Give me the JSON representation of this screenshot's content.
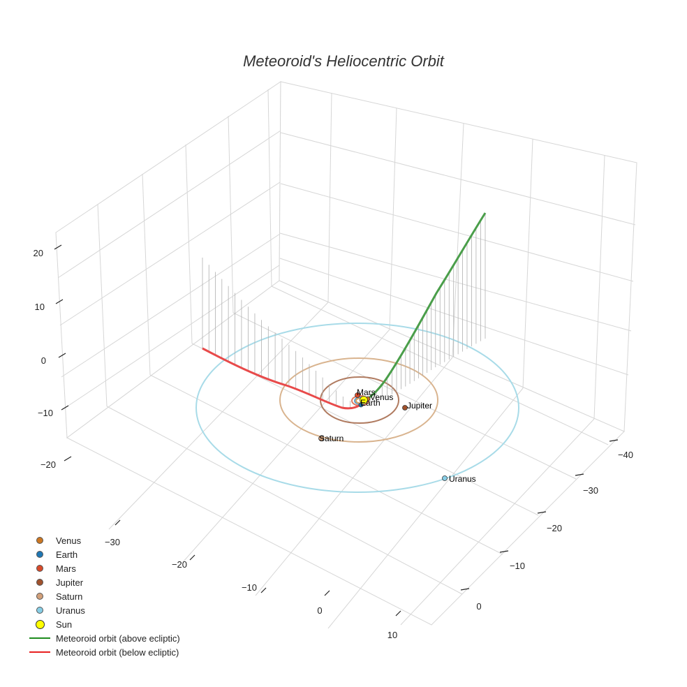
{
  "chart_data": {
    "type": "scatter",
    "title": "Meteoroid's Heliocentric Orbit",
    "xlabel": "",
    "ylabel": "",
    "zlabel": "",
    "xlim": [
      -35,
      15
    ],
    "ylim": [
      -45,
      5
    ],
    "zlim": [
      -28,
      28
    ],
    "x_ticks": [
      "−30",
      "−20",
      "−10",
      "0",
      "10"
    ],
    "y_ticks": [
      "−40",
      "−30",
      "−20",
      "−10",
      "0"
    ],
    "z_ticks": [
      "20",
      "10",
      "0",
      "−10",
      "−20"
    ],
    "grid": true,
    "legend_position": "bottom-left",
    "planets": [
      {
        "name": "Venus",
        "color": "#cc7722",
        "orbit_radius": 0.72
      },
      {
        "name": "Earth",
        "color": "#1f77b4",
        "orbit_radius": 1.0
      },
      {
        "name": "Mars",
        "color": "#d84a2a",
        "orbit_radius": 1.52
      },
      {
        "name": "Jupiter",
        "color": "#a0522d",
        "orbit_radius": 5.2
      },
      {
        "name": "Saturn",
        "color": "#d2a07a",
        "orbit_radius": 9.5
      },
      {
        "name": "Uranus",
        "color": "#87cee6",
        "orbit_radius": 19.2
      }
    ],
    "sun": {
      "name": "Sun",
      "color": "#ffff00"
    },
    "series": [
      {
        "name": "Meteoroid orbit (above ecliptic)",
        "color": "#1e8c1e"
      },
      {
        "name": "Meteoroid orbit (below ecliptic)",
        "color": "#e82020"
      }
    ]
  }
}
